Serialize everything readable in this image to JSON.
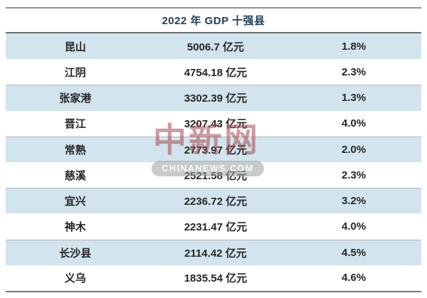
{
  "title": "2022 年 GDP 十强县",
  "table": {
    "rows": [
      {
        "name": "昆山",
        "gdp": "5006.7 亿元",
        "growth": "1.8%"
      },
      {
        "name": "江阴",
        "gdp": "4754.18 亿元",
        "growth": "2.3%"
      },
      {
        "name": "张家港",
        "gdp": "3302.39 亿元",
        "growth": "1.3%"
      },
      {
        "name": "晋江",
        "gdp": "3207.43 亿元",
        "growth": "4.0%"
      },
      {
        "name": "常熟",
        "gdp": "2773.97 亿元",
        "growth": "2.0%"
      },
      {
        "name": "慈溪",
        "gdp": "2521.58 亿元",
        "growth": "2.3%"
      },
      {
        "name": "宜兴",
        "gdp": "2236.72 亿元",
        "growth": "3.2%"
      },
      {
        "name": "神木",
        "gdp": "2231.47 亿元",
        "growth": "4.0%"
      },
      {
        "name": "长沙县",
        "gdp": "2114.42 亿元",
        "growth": "4.5%"
      },
      {
        "name": "义乌",
        "gdp": "1835.54 亿元",
        "growth": "4.6%"
      }
    ]
  },
  "watermark": {
    "cn": "中新网",
    "en": "CHINANEWS.COM"
  },
  "colors": {
    "row_alt_blue": "#d2e5ee",
    "title_text": "#21405a",
    "body_text": "#262626",
    "border_dark": "#75797c",
    "border_light": "#b2b6b8",
    "watermark_red": "#a4484e"
  },
  "chart_data": {
    "type": "table",
    "title": "2022 年 GDP 十强县",
    "unit": "亿元",
    "rows": [
      {
        "county": "昆山",
        "gdp_yi_yuan": 5006.7,
        "growth_pct": 1.8
      },
      {
        "county": "江阴",
        "gdp_yi_yuan": 4754.18,
        "growth_pct": 2.3
      },
      {
        "county": "张家港",
        "gdp_yi_yuan": 3302.39,
        "growth_pct": 1.3
      },
      {
        "county": "晋江",
        "gdp_yi_yuan": 3207.43,
        "growth_pct": 4.0
      },
      {
        "county": "常熟",
        "gdp_yi_yuan": 2773.97,
        "growth_pct": 2.0
      },
      {
        "county": "慈溪",
        "gdp_yi_yuan": 2521.58,
        "growth_pct": 2.3
      },
      {
        "county": "宜兴",
        "gdp_yi_yuan": 2236.72,
        "growth_pct": 3.2
      },
      {
        "county": "神木",
        "gdp_yi_yuan": 2231.47,
        "growth_pct": 4.0
      },
      {
        "county": "长沙县",
        "gdp_yi_yuan": 2114.42,
        "growth_pct": 4.5
      },
      {
        "county": "义乌",
        "gdp_yi_yuan": 1835.54,
        "growth_pct": 4.6
      }
    ]
  }
}
